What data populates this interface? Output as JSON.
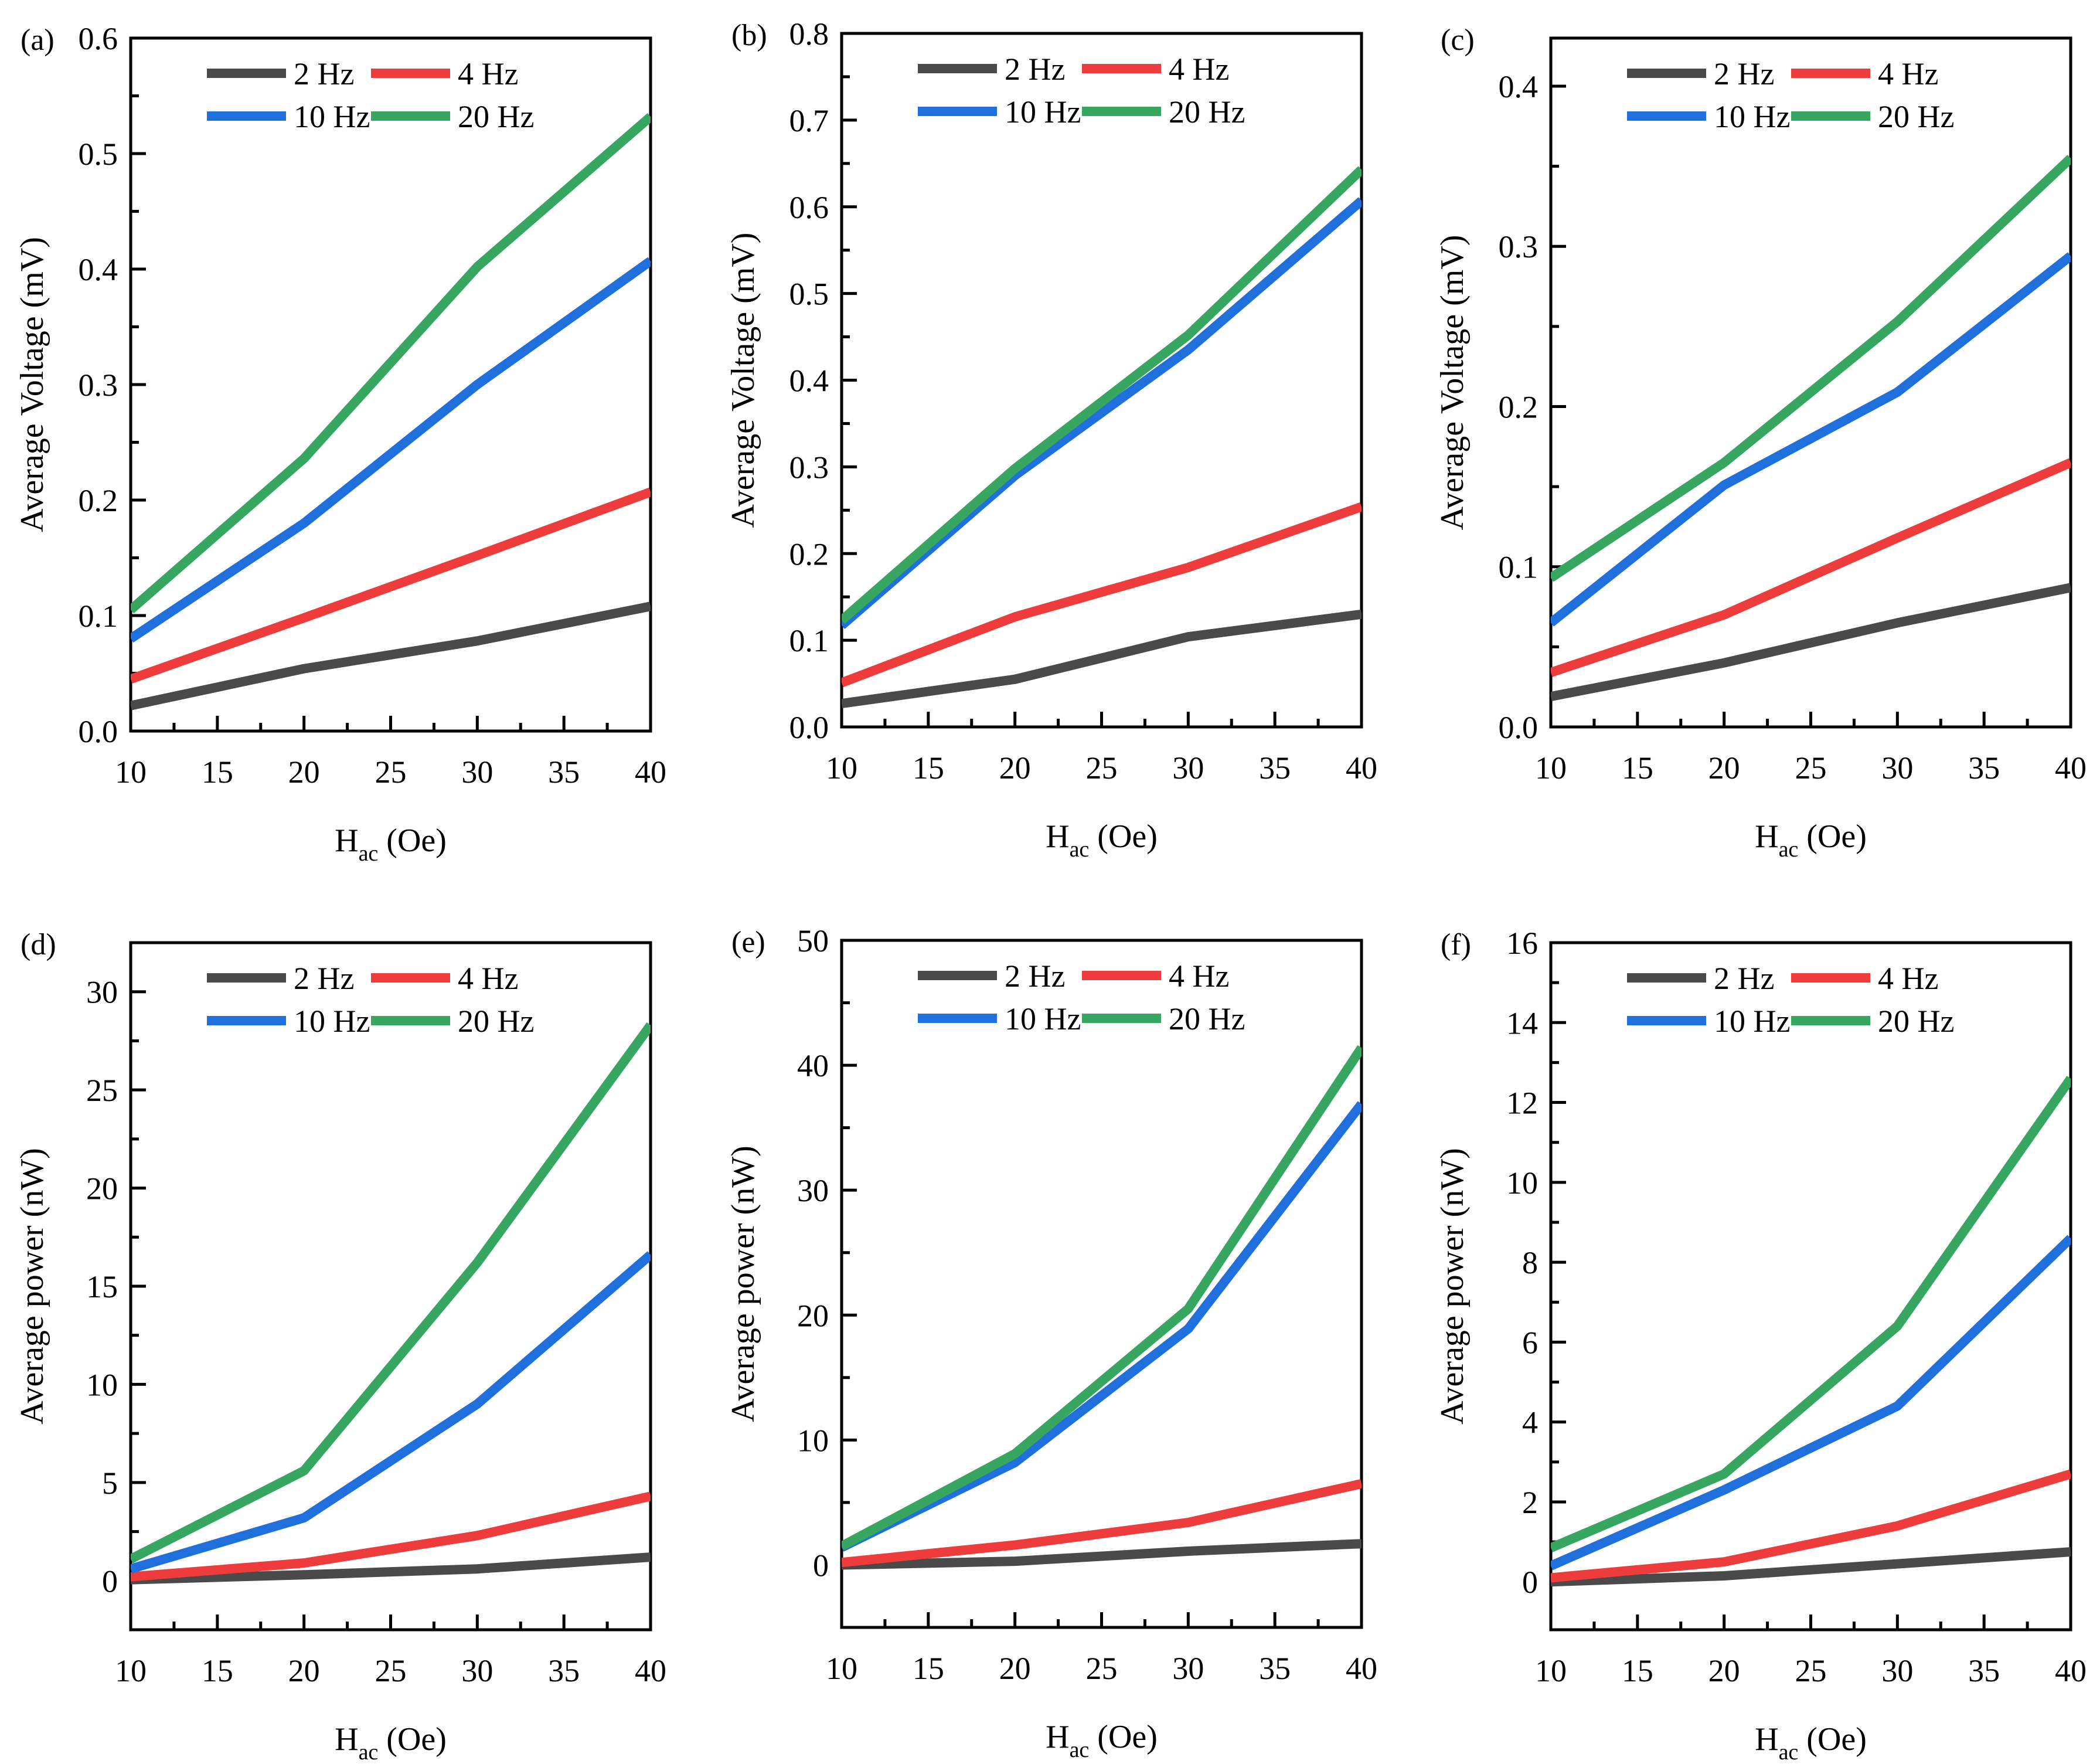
{
  "chart_data": [
    {
      "panel_label": "(a)",
      "type": "line",
      "x": [
        10,
        20,
        30,
        40
      ],
      "xlim": [
        10,
        40
      ],
      "x_ticks": [
        10,
        15,
        20,
        25,
        30,
        35,
        40
      ],
      "x_tick_labels": [
        "10",
        "15",
        "20",
        "25",
        "30",
        "35",
        "40"
      ],
      "xlabel_main": "H",
      "xlabel_sub": "ac",
      "xlabel_unit": " (Oe)",
      "ylabel": "Average Voltage (mV)",
      "ylim": [
        0,
        0.6
      ],
      "y_ticks": [
        0,
        0.1,
        0.2,
        0.3,
        0.4,
        0.5,
        0.6
      ],
      "y_tick_labels": [
        "0.0",
        "0.1",
        "0.2",
        "0.3",
        "0.4",
        "0.5",
        "0.6"
      ],
      "legend_position": "top",
      "series": [
        {
          "name": "2 Hz",
          "color": "#4a4a4a",
          "values": [
            0.022,
            0.054,
            0.078,
            0.108
          ]
        },
        {
          "name": "4 Hz",
          "color": "#ee3b3b",
          "values": [
            0.045,
            0.098,
            0.152,
            0.207
          ]
        },
        {
          "name": "10 Hz",
          "color": "#1f6fdc",
          "values": [
            0.08,
            0.18,
            0.3,
            0.407
          ]
        },
        {
          "name": "20 Hz",
          "color": "#36a661",
          "values": [
            0.105,
            0.236,
            0.402,
            0.532
          ]
        }
      ]
    },
    {
      "panel_label": "(b)",
      "type": "line",
      "x": [
        10,
        20,
        30,
        40
      ],
      "xlim": [
        10,
        40
      ],
      "x_ticks": [
        10,
        15,
        20,
        25,
        30,
        35,
        40
      ],
      "x_tick_labels": [
        "10",
        "15",
        "20",
        "25",
        "30",
        "35",
        "40"
      ],
      "xlabel_main": "H",
      "xlabel_sub": "ac",
      "xlabel_unit": " (Oe)",
      "ylabel": "Average Voltage (mV)",
      "ylim": [
        0,
        0.8
      ],
      "y_ticks": [
        0,
        0.1,
        0.2,
        0.3,
        0.4,
        0.5,
        0.6,
        0.7,
        0.8
      ],
      "y_tick_labels": [
        "0.0",
        "0.1",
        "0.2",
        "0.3",
        "0.4",
        "0.5",
        "0.6",
        "0.7",
        "0.8"
      ],
      "legend_position": "top",
      "series": [
        {
          "name": "2 Hz",
          "color": "#4a4a4a",
          "values": [
            0.027,
            0.055,
            0.104,
            0.13
          ]
        },
        {
          "name": "4 Hz",
          "color": "#ee3b3b",
          "values": [
            0.051,
            0.127,
            0.184,
            0.254
          ]
        },
        {
          "name": "10 Hz",
          "color": "#1f6fdc",
          "values": [
            0.117,
            0.29,
            0.435,
            0.607
          ]
        },
        {
          "name": "20 Hz",
          "color": "#36a661",
          "values": [
            0.123,
            0.298,
            0.452,
            0.643
          ]
        }
      ]
    },
    {
      "panel_label": "(c)",
      "type": "line",
      "x": [
        10,
        20,
        30,
        40
      ],
      "xlim": [
        10,
        40
      ],
      "x_ticks": [
        10,
        15,
        20,
        25,
        30,
        35,
        40
      ],
      "x_tick_labels": [
        "10",
        "15",
        "20",
        "25",
        "30",
        "35",
        "40"
      ],
      "xlabel_main": "H",
      "xlabel_sub": "ac",
      "xlabel_unit": " (Oe)",
      "ylabel": "Average Voltage (mV)",
      "ylim": [
        0,
        0.43
      ],
      "y_ticks": [
        0,
        0.1,
        0.2,
        0.3,
        0.4
      ],
      "y_tick_labels": [
        "0.0",
        "0.1",
        "0.2",
        "0.3",
        "0.4"
      ],
      "legend_position": "top",
      "series": [
        {
          "name": "2 Hz",
          "color": "#4a4a4a",
          "values": [
            0.019,
            0.04,
            0.065,
            0.087
          ]
        },
        {
          "name": "4 Hz",
          "color": "#ee3b3b",
          "values": [
            0.034,
            0.07,
            0.118,
            0.165
          ]
        },
        {
          "name": "10 Hz",
          "color": "#1f6fdc",
          "values": [
            0.065,
            0.151,
            0.209,
            0.294
          ]
        },
        {
          "name": "20 Hz",
          "color": "#36a661",
          "values": [
            0.093,
            0.165,
            0.253,
            0.355
          ]
        }
      ]
    },
    {
      "panel_label": "(d)",
      "type": "line",
      "x": [
        10,
        20,
        30,
        40
      ],
      "xlim": [
        10,
        40
      ],
      "x_ticks": [
        10,
        15,
        20,
        25,
        30,
        35,
        40
      ],
      "x_tick_labels": [
        "10",
        "15",
        "20",
        "25",
        "30",
        "35",
        "40"
      ],
      "xlabel_main": "H",
      "xlabel_sub": "ac",
      "xlabel_unit": " (Oe)",
      "ylabel": "Average power (nW)",
      "ylim": [
        -2.5,
        32.5
      ],
      "y_ticks": [
        0,
        5,
        10,
        15,
        20,
        25,
        30
      ],
      "y_tick_labels": [
        "0",
        "5",
        "10",
        "15",
        "20",
        "25",
        "30"
      ],
      "legend_position": "top",
      "series": [
        {
          "name": "2 Hz",
          "color": "#4a4a4a",
          "values": [
            0.05,
            0.3,
            0.6,
            1.2
          ]
        },
        {
          "name": "4 Hz",
          "color": "#ee3b3b",
          "values": [
            0.2,
            0.9,
            2.3,
            4.3
          ]
        },
        {
          "name": "10 Hz",
          "color": "#1f6fdc",
          "values": [
            0.6,
            3.2,
            9.0,
            16.6
          ]
        },
        {
          "name": "20 Hz",
          "color": "#36a661",
          "values": [
            1.1,
            5.6,
            16.2,
            28.3
          ]
        }
      ]
    },
    {
      "panel_label": "(e)",
      "type": "line",
      "x": [
        10,
        20,
        30,
        40
      ],
      "xlim": [
        10,
        40
      ],
      "x_ticks": [
        10,
        15,
        20,
        25,
        30,
        35,
        40
      ],
      "x_tick_labels": [
        "10",
        "15",
        "20",
        "25",
        "30",
        "35",
        "40"
      ],
      "xlabel_main": "H",
      "xlabel_sub": "ac",
      "xlabel_unit": " (Oe)",
      "ylabel": "Average power (nW)",
      "ylim": [
        -5,
        50
      ],
      "y_ticks": [
        0,
        10,
        20,
        30,
        40,
        50
      ],
      "y_tick_labels": [
        "0",
        "10",
        "20",
        "30",
        "40",
        "50"
      ],
      "legend_position": "top",
      "series": [
        {
          "name": "2 Hz",
          "color": "#4a4a4a",
          "values": [
            0.0,
            0.3,
            1.1,
            1.7
          ]
        },
        {
          "name": "4 Hz",
          "color": "#ee3b3b",
          "values": [
            0.2,
            1.6,
            3.4,
            6.5
          ]
        },
        {
          "name": "10 Hz",
          "color": "#1f6fdc",
          "values": [
            1.4,
            8.2,
            18.9,
            36.9
          ]
        },
        {
          "name": "20 Hz",
          "color": "#36a661",
          "values": [
            1.5,
            8.9,
            20.5,
            41.4
          ]
        }
      ]
    },
    {
      "panel_label": "(f)",
      "type": "line",
      "x": [
        10,
        20,
        30,
        40
      ],
      "xlim": [
        10,
        40
      ],
      "x_ticks": [
        10,
        15,
        20,
        25,
        30,
        35,
        40
      ],
      "x_tick_labels": [
        "10",
        "15",
        "20",
        "25",
        "30",
        "35",
        "40"
      ],
      "xlabel_main": "H",
      "xlabel_sub": "ac",
      "xlabel_unit": " (Oe)",
      "ylabel": "Average power (nW)",
      "ylim": [
        -1.2,
        16
      ],
      "y_ticks": [
        0,
        2,
        4,
        6,
        8,
        10,
        12,
        14,
        16
      ],
      "y_tick_labels": [
        "0",
        "2",
        "4",
        "6",
        "8",
        "10",
        "12",
        "14",
        "16"
      ],
      "legend_position": "top",
      "series": [
        {
          "name": "2 Hz",
          "color": "#4a4a4a",
          "values": [
            0.0,
            0.15,
            0.45,
            0.75
          ]
        },
        {
          "name": "4 Hz",
          "color": "#ee3b3b",
          "values": [
            0.1,
            0.5,
            1.4,
            2.7
          ]
        },
        {
          "name": "10 Hz",
          "color": "#1f6fdc",
          "values": [
            0.4,
            2.3,
            4.4,
            8.6
          ]
        },
        {
          "name": "20 Hz",
          "color": "#36a661",
          "values": [
            0.85,
            2.7,
            6.4,
            12.6
          ]
        }
      ]
    }
  ]
}
